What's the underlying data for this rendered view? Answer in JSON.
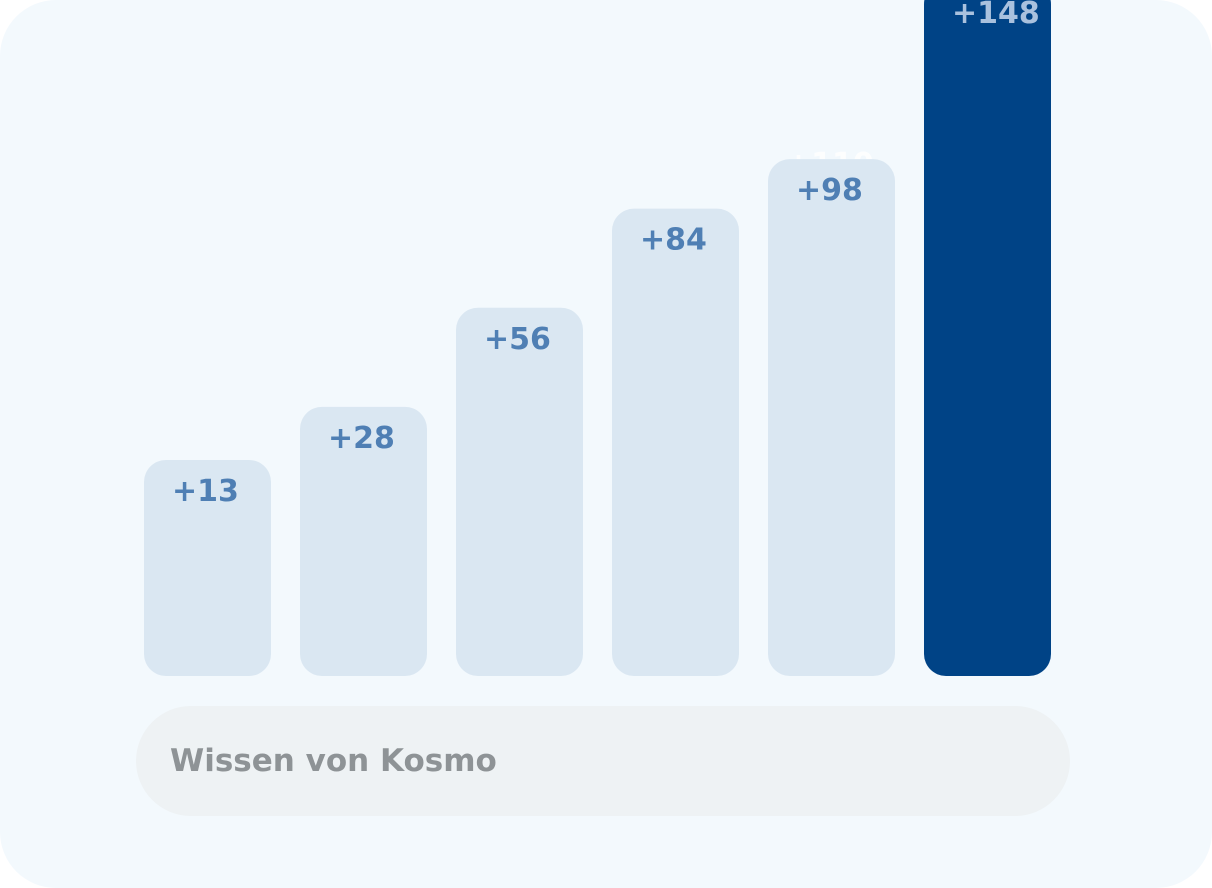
{
  "chart_data": {
    "type": "bar",
    "categories": [
      "",
      "",
      "",
      "",
      "",
      ""
    ],
    "values": [
      13,
      28,
      56,
      84,
      98,
      148
    ],
    "labels": [
      "+13",
      "+28",
      "+56",
      "+84",
      "+98",
      "+148"
    ],
    "highlight_index": 5,
    "hidden_label": "+110",
    "ylim": [
      0,
      160
    ],
    "grid": false,
    "colors": {
      "bar": "#dae7f2",
      "bar_label": "#4f7fb4",
      "highlight_bar": "#004386",
      "highlight_label": "#a9c1de",
      "ghost_label": "#ffffff"
    }
  },
  "input": {
    "placeholder": "Wissen von Kosmo"
  }
}
